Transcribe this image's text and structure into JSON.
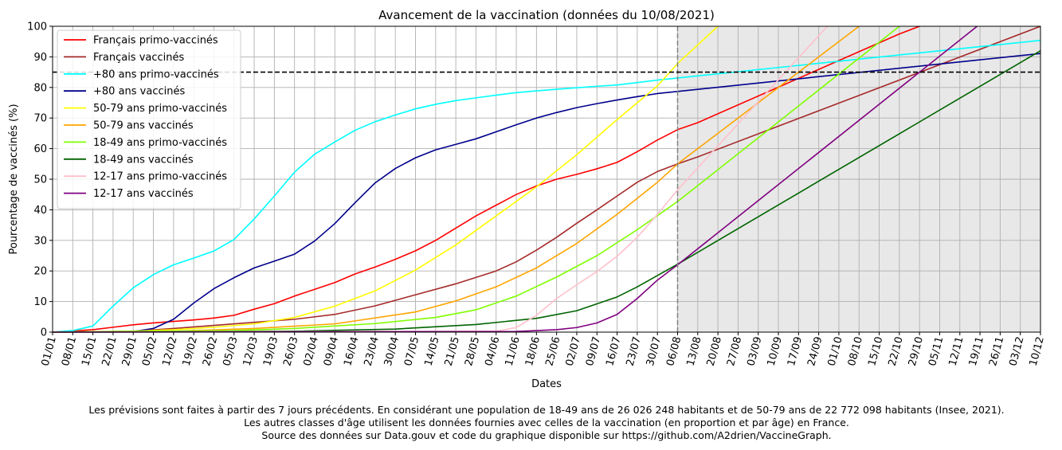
{
  "chart_data": {
    "type": "line",
    "title": "Avancement de la vaccination (données du 10/08/2021)",
    "xlabel": "Dates",
    "ylabel": "Pourcentage de vaccinés (%)",
    "ylim": [
      0,
      100
    ],
    "yticks": [
      0,
      10,
      20,
      30,
      40,
      50,
      60,
      70,
      80,
      90,
      100
    ],
    "xlim": [
      "2021-01-01",
      "2021-12-10"
    ],
    "x_tick_labels": [
      "01/01",
      "08/01",
      "15/01",
      "22/01",
      "29/01",
      "05/02",
      "12/02",
      "19/02",
      "26/02",
      "05/03",
      "12/03",
      "19/03",
      "26/03",
      "02/04",
      "09/04",
      "16/04",
      "23/04",
      "30/04",
      "07/05",
      "14/05",
      "21/05",
      "28/05",
      "04/06",
      "11/06",
      "18/06",
      "25/06",
      "02/07",
      "09/07",
      "16/07",
      "23/07",
      "30/07",
      "06/08",
      "13/08",
      "20/08",
      "27/08",
      "03/09",
      "10/09",
      "17/09",
      "24/09",
      "01/10",
      "08/10",
      "15/10",
      "22/10",
      "29/10",
      "05/11",
      "12/11",
      "19/11",
      "26/11",
      "03/12",
      "10/12"
    ],
    "grid": true,
    "legend_position": "top-left",
    "forecast_start": "2021-08-06",
    "threshold_line": 85,
    "colors": {
      "forecast_shade": "#e8e8e8",
      "threshold": "#000000",
      "forecast_divider": "#808080"
    },
    "series": [
      {
        "name": "Français primo-vaccinés",
        "color": "#ff0000",
        "points": [
          [
            "2021-01-01",
            0
          ],
          [
            "2021-01-15",
            0.8
          ],
          [
            "2021-01-22",
            1.6
          ],
          [
            "2021-01-29",
            2.4
          ],
          [
            "2021-02-05",
            3.0
          ],
          [
            "2021-02-12",
            3.5
          ],
          [
            "2021-02-19",
            4.0
          ],
          [
            "2021-02-26",
            4.6
          ],
          [
            "2021-03-05",
            5.5
          ],
          [
            "2021-03-12",
            7.5
          ],
          [
            "2021-03-19",
            9.3
          ],
          [
            "2021-03-26",
            11.8
          ],
          [
            "2021-04-02",
            14.0
          ],
          [
            "2021-04-09",
            16.2
          ],
          [
            "2021-04-16",
            19.0
          ],
          [
            "2021-04-23",
            21.3
          ],
          [
            "2021-04-30",
            23.8
          ],
          [
            "2021-05-07",
            26.6
          ],
          [
            "2021-05-14",
            30.0
          ],
          [
            "2021-05-21",
            34.0
          ],
          [
            "2021-05-28",
            38.0
          ],
          [
            "2021-06-04",
            41.5
          ],
          [
            "2021-06-11",
            45.0
          ],
          [
            "2021-06-18",
            47.8
          ],
          [
            "2021-06-25",
            50.0
          ],
          [
            "2021-07-02",
            51.6
          ],
          [
            "2021-07-09",
            53.4
          ],
          [
            "2021-07-16",
            55.5
          ],
          [
            "2021-07-23",
            59.0
          ],
          [
            "2021-07-30",
            62.8
          ],
          [
            "2021-08-06",
            66.2
          ],
          [
            "2021-08-13",
            68.5
          ],
          [
            "2021-10-22",
            97.5
          ],
          [
            "2021-10-29",
            100
          ]
        ]
      },
      {
        "name": "Français vaccinés",
        "color": "#a52a2a",
        "points": [
          [
            "2021-01-01",
            0
          ],
          [
            "2021-01-29",
            0.3
          ],
          [
            "2021-02-12",
            1.2
          ],
          [
            "2021-02-26",
            2.2
          ],
          [
            "2021-03-12",
            3.2
          ],
          [
            "2021-03-26",
            4.2
          ],
          [
            "2021-04-09",
            5.8
          ],
          [
            "2021-04-23",
            8.6
          ],
          [
            "2021-05-07",
            12.2
          ],
          [
            "2021-05-21",
            15.8
          ],
          [
            "2021-06-04",
            20.0
          ],
          [
            "2021-06-11",
            23.0
          ],
          [
            "2021-06-18",
            26.8
          ],
          [
            "2021-06-25",
            31.0
          ],
          [
            "2021-07-02",
            35.6
          ],
          [
            "2021-07-09",
            40.0
          ],
          [
            "2021-07-16",
            44.5
          ],
          [
            "2021-07-23",
            49.0
          ],
          [
            "2021-07-30",
            52.5
          ],
          [
            "2021-08-06",
            55.0
          ],
          [
            "2021-08-13",
            57.3
          ],
          [
            "2021-12-10",
            100
          ]
        ]
      },
      {
        "name": "+80 ans primo-vaccinés",
        "color": "#00ffff",
        "points": [
          [
            "2021-01-01",
            0
          ],
          [
            "2021-01-08",
            0.5
          ],
          [
            "2021-01-15",
            2.0
          ],
          [
            "2021-01-22",
            8.5
          ],
          [
            "2021-01-29",
            14.5
          ],
          [
            "2021-02-05",
            18.8
          ],
          [
            "2021-02-12",
            22.0
          ],
          [
            "2021-02-19",
            24.2
          ],
          [
            "2021-02-26",
            26.5
          ],
          [
            "2021-03-05",
            30.3
          ],
          [
            "2021-03-12",
            37.0
          ],
          [
            "2021-03-19",
            44.5
          ],
          [
            "2021-03-26",
            52.3
          ],
          [
            "2021-04-02",
            58.2
          ],
          [
            "2021-04-09",
            62.2
          ],
          [
            "2021-04-16",
            66.0
          ],
          [
            "2021-04-23",
            68.8
          ],
          [
            "2021-04-30",
            71.0
          ],
          [
            "2021-05-07",
            73.0
          ],
          [
            "2021-05-14",
            74.5
          ],
          [
            "2021-05-21",
            75.7
          ],
          [
            "2021-05-28",
            76.6
          ],
          [
            "2021-06-04",
            77.5
          ],
          [
            "2021-06-11",
            78.3
          ],
          [
            "2021-06-18",
            78.9
          ],
          [
            "2021-06-25",
            79.4
          ],
          [
            "2021-07-02",
            79.9
          ],
          [
            "2021-07-09",
            80.4
          ],
          [
            "2021-07-16",
            80.8
          ],
          [
            "2021-07-23",
            81.6
          ],
          [
            "2021-07-30",
            82.4
          ],
          [
            "2021-08-06",
            83.1
          ],
          [
            "2021-12-10",
            95.4
          ]
        ]
      },
      {
        "name": "+80 ans vaccinés",
        "color": "#00008b",
        "points": [
          [
            "2021-01-01",
            0
          ],
          [
            "2021-01-29",
            0.2
          ],
          [
            "2021-02-05",
            1.2
          ],
          [
            "2021-02-12",
            4.2
          ],
          [
            "2021-02-19",
            9.5
          ],
          [
            "2021-02-26",
            14.2
          ],
          [
            "2021-03-05",
            17.8
          ],
          [
            "2021-03-12",
            21.0
          ],
          [
            "2021-03-19",
            23.2
          ],
          [
            "2021-03-26",
            25.5
          ],
          [
            "2021-04-02",
            29.8
          ],
          [
            "2021-04-09",
            35.5
          ],
          [
            "2021-04-16",
            42.3
          ],
          [
            "2021-04-23",
            48.8
          ],
          [
            "2021-04-30",
            53.5
          ],
          [
            "2021-05-07",
            57.0
          ],
          [
            "2021-05-14",
            59.6
          ],
          [
            "2021-05-21",
            61.4
          ],
          [
            "2021-05-28",
            63.2
          ],
          [
            "2021-06-04",
            65.5
          ],
          [
            "2021-06-11",
            67.8
          ],
          [
            "2021-06-18",
            70.0
          ],
          [
            "2021-06-25",
            71.8
          ],
          [
            "2021-07-02",
            73.4
          ],
          [
            "2021-07-09",
            74.7
          ],
          [
            "2021-07-16",
            75.9
          ],
          [
            "2021-07-23",
            77.0
          ],
          [
            "2021-07-30",
            78.0
          ],
          [
            "2021-08-06",
            78.7
          ],
          [
            "2021-12-10",
            91.1
          ]
        ]
      },
      {
        "name": "50-79 ans primo-vaccinés",
        "color": "#ffff00",
        "points": [
          [
            "2021-01-01",
            0
          ],
          [
            "2021-01-29",
            0.3
          ],
          [
            "2021-02-12",
            0.8
          ],
          [
            "2021-02-26",
            1.6
          ],
          [
            "2021-03-12",
            2.7
          ],
          [
            "2021-03-26",
            4.8
          ],
          [
            "2021-04-09",
            8.5
          ],
          [
            "2021-04-23",
            13.5
          ],
          [
            "2021-05-07",
            20.3
          ],
          [
            "2021-05-21",
            28.5
          ],
          [
            "2021-06-04",
            38.0
          ],
          [
            "2021-06-18",
            47.5
          ],
          [
            "2021-07-02",
            58.0
          ],
          [
            "2021-07-16",
            69.5
          ],
          [
            "2021-07-30",
            80.5
          ],
          [
            "2021-08-06",
            87.8
          ],
          [
            "2021-08-20",
            100
          ]
        ]
      },
      {
        "name": "50-79 ans vaccinés",
        "color": "#ffa500",
        "points": [
          [
            "2021-01-01",
            0
          ],
          [
            "2021-02-12",
            0.3
          ],
          [
            "2021-03-12",
            1.2
          ],
          [
            "2021-04-09",
            2.7
          ],
          [
            "2021-05-07",
            6.6
          ],
          [
            "2021-05-21",
            10.2
          ],
          [
            "2021-06-04",
            14.8
          ],
          [
            "2021-06-18",
            21.0
          ],
          [
            "2021-07-02",
            29.0
          ],
          [
            "2021-07-16",
            38.5
          ],
          [
            "2021-07-30",
            49.0
          ],
          [
            "2021-08-06",
            55.0
          ],
          [
            "2021-10-08",
            100
          ]
        ]
      },
      {
        "name": "18-49 ans primo-vaccinés",
        "color": "#7fff00",
        "points": [
          [
            "2021-01-01",
            0
          ],
          [
            "2021-03-05",
            0.5
          ],
          [
            "2021-03-26",
            1.2
          ],
          [
            "2021-04-23",
            2.8
          ],
          [
            "2021-05-14",
            4.8
          ],
          [
            "2021-05-28",
            7.3
          ],
          [
            "2021-06-11",
            11.8
          ],
          [
            "2021-06-25",
            18.0
          ],
          [
            "2021-07-09",
            25.0
          ],
          [
            "2021-07-23",
            33.5
          ],
          [
            "2021-08-06",
            42.7
          ],
          [
            "2021-10-22",
            100
          ]
        ]
      },
      {
        "name": "18-49 ans vaccinés",
        "color": "#006400",
        "points": [
          [
            "2021-01-01",
            0
          ],
          [
            "2021-03-26",
            0.3
          ],
          [
            "2021-04-30",
            1.0
          ],
          [
            "2021-05-28",
            2.5
          ],
          [
            "2021-06-18",
            4.5
          ],
          [
            "2021-07-02",
            7.0
          ],
          [
            "2021-07-16",
            11.5
          ],
          [
            "2021-07-23",
            14.8
          ],
          [
            "2021-07-30",
            18.5
          ],
          [
            "2021-08-06",
            22.2
          ],
          [
            "2021-12-10",
            92.0
          ]
        ]
      },
      {
        "name": "12-17 ans primo-vaccinés",
        "color": "#ffc0cb",
        "points": [
          [
            "2021-01-01",
            0
          ],
          [
            "2021-06-04",
            0.3
          ],
          [
            "2021-06-11",
            1.5
          ],
          [
            "2021-06-18",
            5.5
          ],
          [
            "2021-06-25",
            11.0
          ],
          [
            "2021-07-02",
            15.5
          ],
          [
            "2021-07-09",
            19.8
          ],
          [
            "2021-07-16",
            24.8
          ],
          [
            "2021-07-23",
            31.0
          ],
          [
            "2021-07-30",
            38.5
          ],
          [
            "2021-08-06",
            46.5
          ],
          [
            "2021-09-27",
            100
          ]
        ]
      },
      {
        "name": "12-17 ans vaccinés",
        "color": "#800080",
        "points": [
          [
            "2021-01-01",
            0
          ],
          [
            "2021-06-11",
            0.2
          ],
          [
            "2021-06-25",
            0.8
          ],
          [
            "2021-07-02",
            1.5
          ],
          [
            "2021-07-09",
            3.0
          ],
          [
            "2021-07-16",
            5.8
          ],
          [
            "2021-07-23",
            11.0
          ],
          [
            "2021-07-30",
            17.0
          ],
          [
            "2021-08-06",
            22.0
          ],
          [
            "2021-11-18",
            100
          ]
        ]
      }
    ]
  },
  "footer": {
    "line1": "Les prévisions sont faites à partir des 7 jours précédents. En considérant une population de 18-49 ans de 26 026 248 habitants et de 50-79 ans de 22 772 098 habitants (Insee, 2021).",
    "line2": "Les autres classes d'âge utilisent les données fournies avec celles de la vaccination (en proportion et par âge) en France.",
    "line3": "Source des données sur Data.gouv et code du graphique disponible sur https://github.com/A2drien/VaccineGraph."
  }
}
